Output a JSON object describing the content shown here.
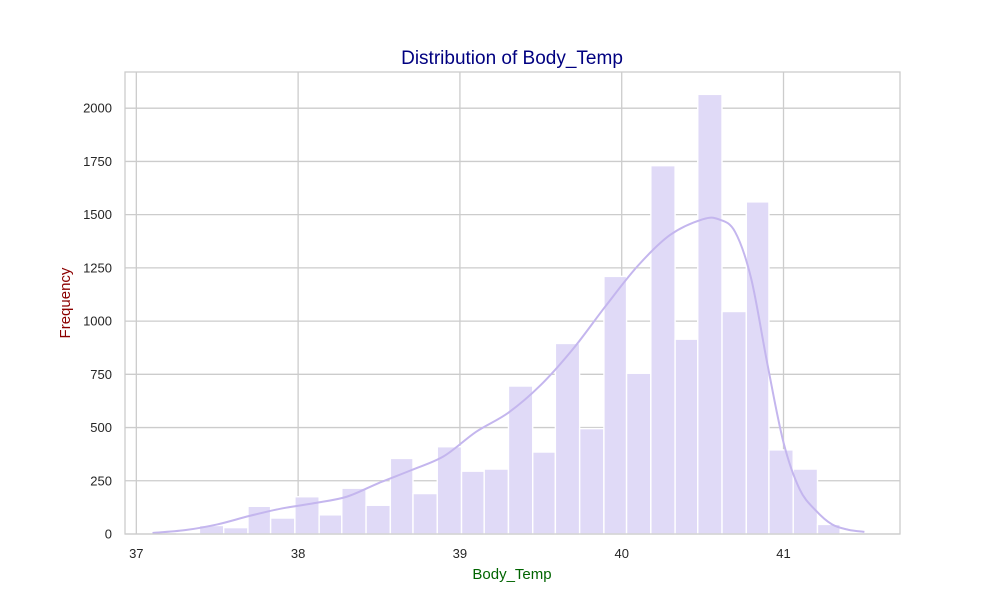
{
  "chart_data": {
    "type": "bar",
    "title": "Distribution of Body_Temp",
    "xlabel": "Body_Temp",
    "ylabel": "Frequency",
    "xlim": [
      36.93,
      41.72
    ],
    "ylim": [
      0,
      2170
    ],
    "xticks": [
      37,
      38,
      39,
      40,
      41
    ],
    "yticks": [
      0,
      250,
      500,
      750,
      1000,
      1250,
      1500,
      1750,
      2000
    ],
    "grid": true,
    "legend": "none",
    "bin_edges": [
      37.1,
      37.25,
      37.39,
      37.54,
      37.69,
      37.83,
      37.98,
      38.13,
      38.27,
      38.42,
      38.57,
      38.71,
      38.86,
      39.01,
      39.15,
      39.3,
      39.45,
      39.59,
      39.74,
      39.89,
      40.03,
      40.18,
      40.33,
      40.47,
      40.62,
      40.77,
      40.91,
      41.06,
      41.21,
      41.35
    ],
    "counts": [
      0,
      5,
      40,
      30,
      130,
      75,
      175,
      90,
      215,
      135,
      355,
      190,
      410,
      295,
      305,
      695,
      385,
      895,
      495,
      1210,
      755,
      1730,
      915,
      2065,
      1045,
      1560,
      395,
      305,
      45
    ],
    "kde": {
      "x": [
        37.1,
        37.3,
        37.5,
        37.7,
        37.9,
        38.1,
        38.3,
        38.5,
        38.7,
        38.9,
        39.1,
        39.3,
        39.5,
        39.7,
        39.9,
        40.1,
        40.3,
        40.5,
        40.6,
        40.7,
        40.8,
        40.9,
        41.0,
        41.1,
        41.2,
        41.3,
        41.4,
        41.5
      ],
      "y": [
        5,
        18,
        45,
        85,
        120,
        145,
        175,
        240,
        300,
        365,
        480,
        570,
        700,
        870,
        1070,
        1260,
        1405,
        1478,
        1478,
        1420,
        1200,
        800,
        430,
        210,
        110,
        45,
        20,
        10
      ]
    },
    "colors": {
      "bar_fill": "#e0daf7",
      "bar_stroke": "#ffffff",
      "kde_line": "#c4b6ee",
      "grid": "#cccccc",
      "frame": "#cccccc",
      "title": "#000080",
      "xlabel": "#006400",
      "ylabel": "#8b0000"
    }
  }
}
